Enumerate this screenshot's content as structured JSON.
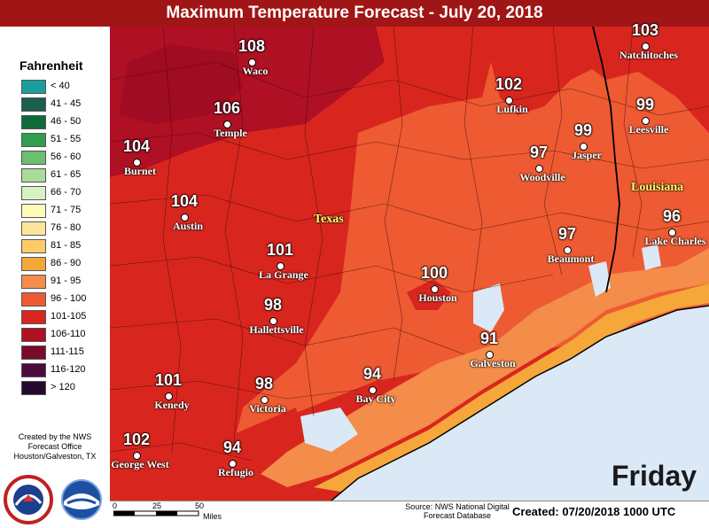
{
  "title": "Maximum Temperature Forecast - July 20, 2018",
  "legend": {
    "title": "Fahrenheit",
    "items": [
      {
        "label": "< 40",
        "color": "#1a9e9e"
      },
      {
        "label": "41 - 45",
        "color": "#1b5e4c"
      },
      {
        "label": "46 - 50",
        "color": "#0d6b3a"
      },
      {
        "label": "51 - 55",
        "color": "#2f9e4e"
      },
      {
        "label": "56 - 60",
        "color": "#6bbf6e"
      },
      {
        "label": "61 - 65",
        "color": "#a8dc98"
      },
      {
        "label": "66 - 70",
        "color": "#d7f2c2"
      },
      {
        "label": "71 - 75",
        "color": "#fdfbb8"
      },
      {
        "label": "76 - 80",
        "color": "#fde69b"
      },
      {
        "label": "81 - 85",
        "color": "#fbcc68"
      },
      {
        "label": "86 - 90",
        "color": "#f5a73a"
      },
      {
        "label": "91 - 95",
        "color": "#f48c4a"
      },
      {
        "label": "96 - 100",
        "color": "#ee5a32"
      },
      {
        "label": "101-105",
        "color": "#d8261f"
      },
      {
        "label": "106-110",
        "color": "#b01023"
      },
      {
        "label": "111-115",
        "color": "#7a0a2a"
      },
      {
        "label": "116-120",
        "color": "#4e0a3a"
      },
      {
        "label": "> 120",
        "color": "#240a2c"
      }
    ]
  },
  "credit": "Created by the NWS Forecast Office Houston/Galveston, TX",
  "cities": [
    {
      "name": "Waco",
      "temp": "108"
    },
    {
      "name": "Temple",
      "temp": "106"
    },
    {
      "name": "Burnet",
      "temp": "104"
    },
    {
      "name": "Austin",
      "temp": "104"
    },
    {
      "name": "La Grange",
      "temp": "101"
    },
    {
      "name": "Hallettsville",
      "temp": "98"
    },
    {
      "name": "Kenedy",
      "temp": "101"
    },
    {
      "name": "Victoria",
      "temp": "98"
    },
    {
      "name": "George West",
      "temp": "102"
    },
    {
      "name": "Refugio",
      "temp": "94"
    },
    {
      "name": "Bay City",
      "temp": "94"
    },
    {
      "name": "Houston",
      "temp": "100"
    },
    {
      "name": "Galveston",
      "temp": "91"
    },
    {
      "name": "Lufkin",
      "temp": "102"
    },
    {
      "name": "Woodville",
      "temp": "97"
    },
    {
      "name": "Jasper",
      "temp": "99"
    },
    {
      "name": "Beaumont",
      "temp": "97"
    },
    {
      "name": "Natchitoches",
      "temp": "103"
    },
    {
      "name": "Leesville",
      "temp": "99"
    },
    {
      "name": "Lake Charles",
      "temp": "96"
    }
  ],
  "state_labels": {
    "texas": "Texas",
    "louisiana": "Louisiana"
  },
  "day": "Friday",
  "scale": {
    "ticks": [
      "0",
      "25",
      "50"
    ],
    "unit": "Miles"
  },
  "source": "Source: NWS National Digital Forecast Database",
  "created": "Created: 07/20/2018 1000 UTC"
}
